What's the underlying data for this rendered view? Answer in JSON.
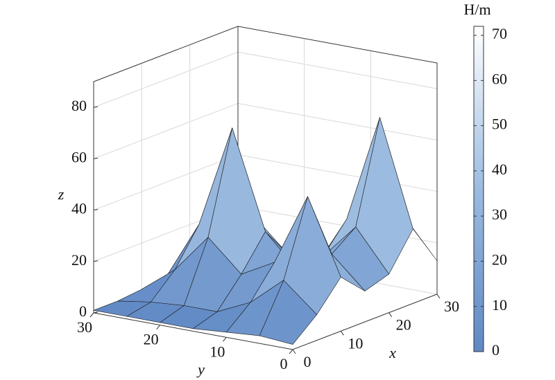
{
  "chart_data": {
    "type": "surface3d",
    "x": [
      0,
      5,
      10,
      15,
      20,
      25,
      30
    ],
    "y": [
      0,
      5,
      10,
      15,
      20,
      25,
      30
    ],
    "z": [
      [
        2,
        10,
        21,
        12,
        15,
        29,
        13
      ],
      [
        3,
        21,
        50,
        24,
        31,
        70,
        28
      ],
      [
        2,
        10,
        22,
        15,
        17,
        28,
        13
      ],
      [
        1,
        4,
        15,
        28,
        15,
        6,
        3
      ],
      [
        1,
        4,
        27,
        66,
        27,
        4,
        1
      ],
      [
        1,
        3,
        12,
        26,
        12,
        2,
        1
      ],
      [
        1,
        1,
        2,
        3,
        2,
        1,
        1
      ]
    ],
    "xlim": [
      0,
      30
    ],
    "ylim": [
      0,
      30
    ],
    "zlim": [
      0,
      90
    ],
    "xticks": [
      0,
      10,
      20,
      30
    ],
    "yticks": [
      0,
      10,
      20,
      30
    ],
    "zticks": [
      0,
      20,
      40,
      60,
      80
    ],
    "x_label": "x",
    "y_label": "y",
    "z_label": "z",
    "grid": true,
    "colorbar": {
      "label": "H/m",
      "clim": [
        0,
        72
      ],
      "ticks": [
        0,
        10,
        20,
        30,
        40,
        50,
        60,
        70
      ],
      "colormap": [
        "#5f88c4",
        "#9bbbe0",
        "#ffffff"
      ]
    }
  }
}
